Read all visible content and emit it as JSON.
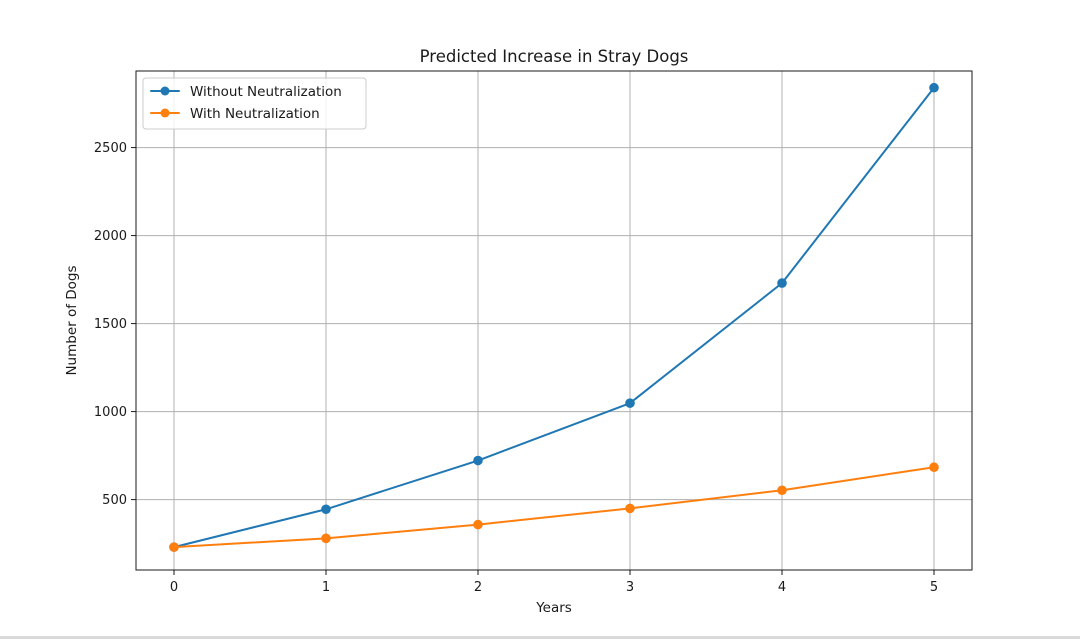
{
  "chart_data": {
    "type": "line",
    "title": "Predicted Increase in Stray Dogs",
    "xlabel": "Years",
    "ylabel": "Number of Dogs",
    "x": [
      0,
      1,
      2,
      3,
      4,
      5
    ],
    "xticks": [
      0,
      1,
      2,
      3,
      4,
      5
    ],
    "yticks": [
      500,
      1000,
      1500,
      2000,
      2500
    ],
    "xlim": [
      -0.25,
      5.25
    ],
    "ylim": [
      100,
      2935
    ],
    "grid": true,
    "legend_position": "top-left",
    "series": [
      {
        "name": "Without Neutralization",
        "color": "#1f77b4",
        "marker": "circle",
        "values": [
          230,
          445,
          722,
          1048,
          1730,
          2840
        ]
      },
      {
        "name": "With Neutralization",
        "color": "#ff7f0e",
        "marker": "circle",
        "values": [
          230,
          280,
          358,
          450,
          553,
          684
        ]
      }
    ]
  }
}
